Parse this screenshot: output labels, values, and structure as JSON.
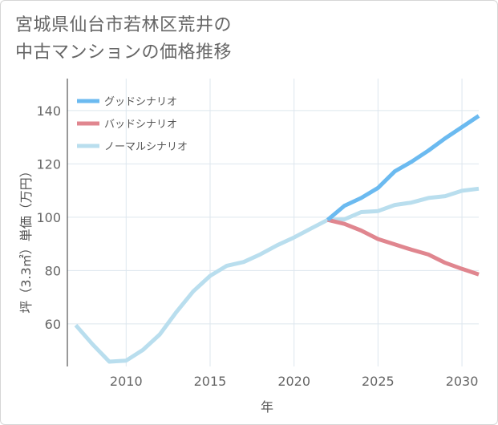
{
  "title_line1": "宮城県仙台市若林区荒井の",
  "title_line2": "中古マンションの価格推移",
  "chart_data": {
    "type": "line",
    "xlabel": "年",
    "ylabel": "坪（3.3㎡）単価（万円）",
    "xlim": [
      2006.5,
      2031
    ],
    "ylim": [
      44,
      152
    ],
    "xticks": [
      2010,
      2015,
      2020,
      2025,
      2030
    ],
    "yticks": [
      60,
      80,
      100,
      120,
      140
    ],
    "grid": true,
    "legend_position": "top-left",
    "series": [
      {
        "name": "グッドシナリオ",
        "color": "#6bbaf0",
        "points": [
          [
            2022,
            99
          ],
          [
            2023,
            104.3
          ],
          [
            2024,
            107.2
          ],
          [
            2025,
            111
          ],
          [
            2026,
            117.2
          ],
          [
            2027,
            120.8
          ],
          [
            2028,
            125
          ],
          [
            2029,
            129.6
          ],
          [
            2030,
            133.8
          ],
          [
            2031,
            138
          ]
        ]
      },
      {
        "name": "バッドシナリオ",
        "color": "#e0868f",
        "points": [
          [
            2022,
            99
          ],
          [
            2023,
            97.5
          ],
          [
            2024,
            95
          ],
          [
            2025,
            91.8
          ],
          [
            2026,
            89.8
          ],
          [
            2027,
            87.8
          ],
          [
            2028,
            86
          ],
          [
            2029,
            82.9
          ],
          [
            2030,
            80.6
          ],
          [
            2031,
            78.5
          ]
        ]
      },
      {
        "name": "ノーマルシナリオ",
        "color": "#b9deee",
        "points": [
          [
            2007,
            59.5
          ],
          [
            2008,
            52.3
          ],
          [
            2009,
            45.8
          ],
          [
            2010,
            46.2
          ],
          [
            2011,
            50.2
          ],
          [
            2012,
            56
          ],
          [
            2013,
            64.5
          ],
          [
            2014,
            72.2
          ],
          [
            2015,
            78
          ],
          [
            2016,
            81.8
          ],
          [
            2017,
            83.2
          ],
          [
            2018,
            86.1
          ],
          [
            2019,
            89.5
          ],
          [
            2020,
            92.4
          ],
          [
            2021,
            95.7
          ],
          [
            2022,
            99
          ],
          [
            2023,
            99.2
          ],
          [
            2024,
            101.9
          ],
          [
            2025,
            102.3
          ],
          [
            2026,
            104.6
          ],
          [
            2027,
            105.5
          ],
          [
            2028,
            107.2
          ],
          [
            2029,
            107.9
          ],
          [
            2030,
            109.9
          ],
          [
            2031,
            110.7
          ]
        ]
      }
    ]
  }
}
